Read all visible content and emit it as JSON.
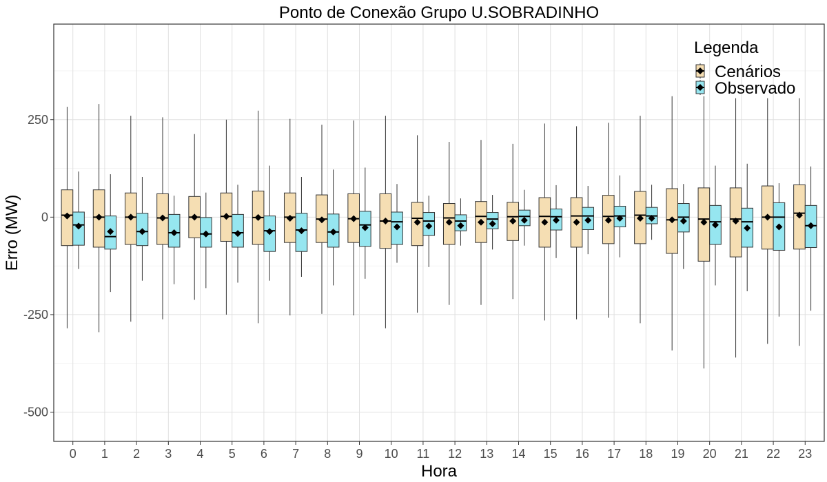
{
  "chart_data": {
    "type": "boxplot",
    "title": "Ponto de Conexão Grupo U.SOBRADINHO",
    "xlabel": "Hora",
    "ylabel": "Erro (MW)",
    "ylim": [
      -575,
      495
    ],
    "yticks": [
      250,
      0,
      -250,
      -500
    ],
    "ytick_labels": [
      "250",
      "0",
      "-250",
      "-500"
    ],
    "grid": true,
    "legend": {
      "title": "Legenda",
      "position": "top-right"
    },
    "categories": [
      "0",
      "1",
      "2",
      "3",
      "4",
      "5",
      "6",
      "7",
      "8",
      "9",
      "10",
      "11",
      "12",
      "13",
      "14",
      "15",
      "16",
      "17",
      "18",
      "19",
      "20",
      "21",
      "22",
      "23"
    ],
    "series": [
      {
        "name": "Cenários",
        "color": "#f5deb3",
        "boxes": [
          {
            "min": -285,
            "q1": -73,
            "median": 5,
            "q3": 70,
            "max": 283,
            "mean": 3
          },
          {
            "min": -295,
            "q1": -77,
            "median": 0,
            "q3": 70,
            "max": 290,
            "mean": 0
          },
          {
            "min": -268,
            "q1": -70,
            "median": 0,
            "q3": 62,
            "max": 260,
            "mean": 0
          },
          {
            "min": -262,
            "q1": -70,
            "median": -2,
            "q3": 60,
            "max": 256,
            "mean": -2
          },
          {
            "min": -212,
            "q1": -53,
            "median": 0,
            "q3": 53,
            "max": 213,
            "mean": 0
          },
          {
            "min": -250,
            "q1": -62,
            "median": 2,
            "q3": 62,
            "max": 250,
            "mean": 2
          },
          {
            "min": -272,
            "q1": -70,
            "median": -1,
            "q3": 67,
            "max": 273,
            "mean": -1
          },
          {
            "min": -252,
            "q1": -65,
            "median": 0,
            "q3": 62,
            "max": 252,
            "mean": -3
          },
          {
            "min": -248,
            "q1": -65,
            "median": -5,
            "q3": 57,
            "max": 237,
            "mean": -7
          },
          {
            "min": -252,
            "q1": -65,
            "median": -4,
            "q3": 60,
            "max": 248,
            "mean": -4
          },
          {
            "min": -285,
            "q1": -80,
            "median": -10,
            "q3": 60,
            "max": 260,
            "mean": -10
          },
          {
            "min": -245,
            "q1": -73,
            "median": -3,
            "q3": 38,
            "max": 210,
            "mean": -13
          },
          {
            "min": -225,
            "q1": -70,
            "median": -2,
            "q3": 35,
            "max": 193,
            "mean": -13
          },
          {
            "min": -225,
            "q1": -65,
            "median": 2,
            "q3": 40,
            "max": 198,
            "mean": -13
          },
          {
            "min": -210,
            "q1": -60,
            "median": 1,
            "q3": 38,
            "max": 188,
            "mean": -10
          },
          {
            "min": -265,
            "q1": -77,
            "median": 2,
            "q3": 50,
            "max": 240,
            "mean": -13
          },
          {
            "min": -262,
            "q1": -77,
            "median": 3,
            "q3": 50,
            "max": 233,
            "mean": -13
          },
          {
            "min": -258,
            "q1": -68,
            "median": 2,
            "q3": 56,
            "max": 242,
            "mean": -8
          },
          {
            "min": -272,
            "q1": -68,
            "median": 5,
            "q3": 66,
            "max": 260,
            "mean": -3
          },
          {
            "min": -342,
            "q1": -93,
            "median": -7,
            "q3": 73,
            "max": 310,
            "mean": -7
          },
          {
            "min": -388,
            "q1": -113,
            "median": -5,
            "q3": 75,
            "max": 310,
            "mean": -13
          },
          {
            "min": -360,
            "q1": -102,
            "median": -5,
            "q3": 75,
            "max": 305,
            "mean": -10
          },
          {
            "min": -325,
            "q1": -82,
            "median": 0,
            "q3": 80,
            "max": 305,
            "mean": 0
          },
          {
            "min": -330,
            "q1": -82,
            "median": 10,
            "q3": 83,
            "max": 305,
            "mean": 5
          }
        ]
      },
      {
        "name": "Observado",
        "color": "#96e6f0",
        "boxes": [
          {
            "min": -133,
            "q1": -72,
            "median": -20,
            "q3": 13,
            "max": 117,
            "mean": -23
          },
          {
            "min": -192,
            "q1": -82,
            "median": -50,
            "q3": 3,
            "max": 110,
            "mean": -37
          },
          {
            "min": -163,
            "q1": -73,
            "median": -37,
            "q3": 10,
            "max": 103,
            "mean": -37
          },
          {
            "min": -172,
            "q1": -77,
            "median": -40,
            "q3": 7,
            "max": 55,
            "mean": -40
          },
          {
            "min": -182,
            "q1": -77,
            "median": -43,
            "q3": -1,
            "max": 63,
            "mean": -43
          },
          {
            "min": -168,
            "q1": -77,
            "median": -40,
            "q3": 7,
            "max": 83,
            "mean": -42
          },
          {
            "min": -163,
            "q1": -88,
            "median": -35,
            "q3": 3,
            "max": 132,
            "mean": -37
          },
          {
            "min": -153,
            "q1": -88,
            "median": -33,
            "q3": 10,
            "max": 103,
            "mean": -35
          },
          {
            "min": -175,
            "q1": -77,
            "median": -38,
            "q3": 8,
            "max": 122,
            "mean": -38
          },
          {
            "min": -158,
            "q1": -75,
            "median": -20,
            "q3": 15,
            "max": 127,
            "mean": -27
          },
          {
            "min": -117,
            "q1": -70,
            "median": -12,
            "q3": 13,
            "max": 85,
            "mean": -25
          },
          {
            "min": -128,
            "q1": -47,
            "median": -10,
            "q3": 12,
            "max": 55,
            "mean": -23
          },
          {
            "min": -73,
            "q1": -35,
            "median": -10,
            "q3": 6,
            "max": 48,
            "mean": -22
          },
          {
            "min": -83,
            "q1": -30,
            "median": -5,
            "q3": 12,
            "max": 57,
            "mean": -17
          },
          {
            "min": -73,
            "q1": -22,
            "median": 2,
            "q3": 18,
            "max": 70,
            "mean": -8
          },
          {
            "min": -105,
            "q1": -33,
            "median": 1,
            "q3": 21,
            "max": 82,
            "mean": -8
          },
          {
            "min": -95,
            "q1": -32,
            "median": 3,
            "q3": 25,
            "max": 80,
            "mean": -8
          },
          {
            "min": -103,
            "q1": -25,
            "median": 3,
            "q3": 28,
            "max": 107,
            "mean": -3
          },
          {
            "min": -58,
            "q1": -17,
            "median": 3,
            "q3": 25,
            "max": 83,
            "mean": -3
          },
          {
            "min": -133,
            "q1": -38,
            "median": 0,
            "q3": 35,
            "max": 85,
            "mean": -10
          },
          {
            "min": -175,
            "q1": -70,
            "median": -12,
            "q3": 30,
            "max": 132,
            "mean": -20
          },
          {
            "min": -190,
            "q1": -77,
            "median": -12,
            "q3": 23,
            "max": 137,
            "mean": -28
          },
          {
            "min": -255,
            "q1": -85,
            "median": 0,
            "q3": 37,
            "max": 87,
            "mean": -25
          },
          {
            "min": -240,
            "q1": -78,
            "median": -22,
            "q3": 30,
            "max": 130,
            "mean": -22
          }
        ]
      }
    ]
  }
}
